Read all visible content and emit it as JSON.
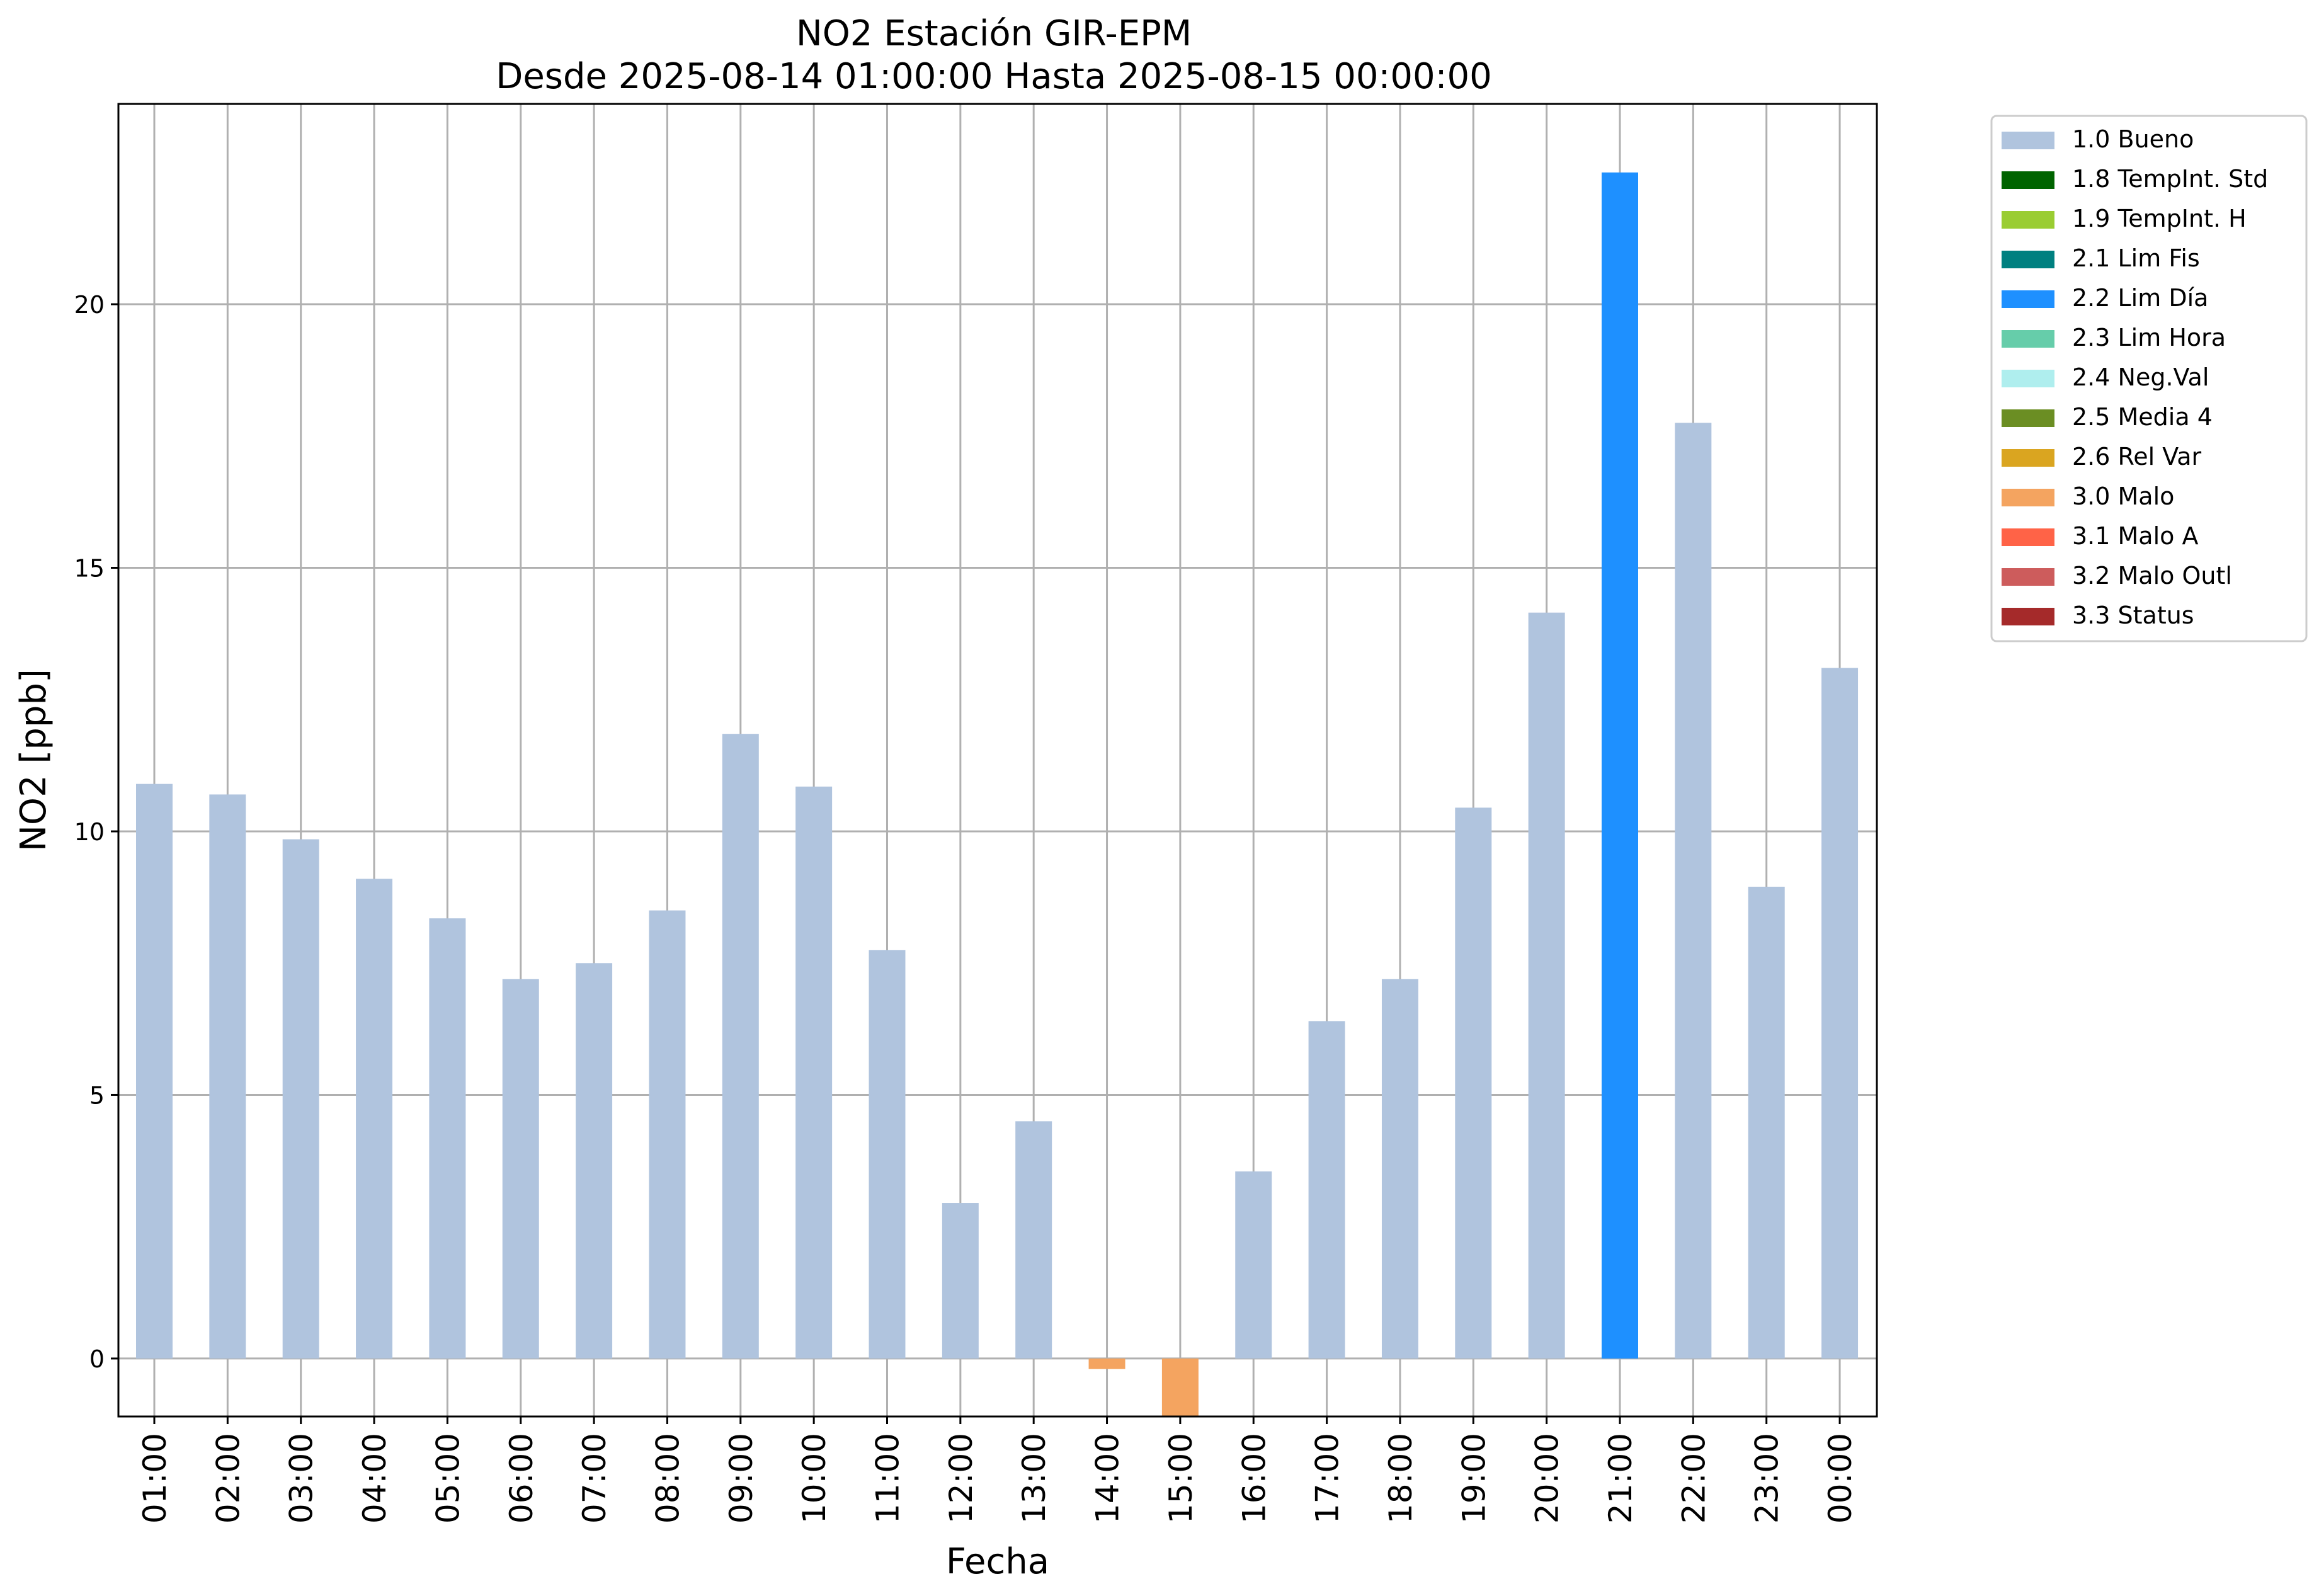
{
  "chart_data": {
    "type": "bar",
    "title": "NO2 Estación GIR-EPM",
    "subtitle": "Desde 2025-08-14 01:00:00 Hasta 2025-08-15 00:00:00",
    "xlabel": "Fecha",
    "ylabel": "NO2 [ppb]",
    "ylim": [
      -1.1,
      23.8
    ],
    "yticks": [
      0,
      5,
      10,
      15,
      20
    ],
    "grid": true,
    "legend_position": "outside-top-right",
    "categories": [
      "01:00",
      "02:00",
      "03:00",
      "04:00",
      "05:00",
      "06:00",
      "07:00",
      "08:00",
      "09:00",
      "10:00",
      "11:00",
      "12:00",
      "13:00",
      "14:00",
      "15:00",
      "16:00",
      "17:00",
      "18:00",
      "19:00",
      "20:00",
      "21:00",
      "22:00",
      "23:00",
      "00:00"
    ],
    "values": [
      10.9,
      10.7,
      9.85,
      9.1,
      8.35,
      7.2,
      7.5,
      8.5,
      11.85,
      10.85,
      7.75,
      2.95,
      4.5,
      -0.2,
      -1.1,
      3.55,
      6.4,
      7.2,
      10.45,
      14.15,
      22.5,
      17.75,
      8.95,
      13.1
    ],
    "flags": [
      "1.0 Bueno",
      "1.0 Bueno",
      "1.0 Bueno",
      "1.0 Bueno",
      "1.0 Bueno",
      "1.0 Bueno",
      "1.0 Bueno",
      "1.0 Bueno",
      "1.0 Bueno",
      "1.0 Bueno",
      "1.0 Bueno",
      "1.0 Bueno",
      "1.0 Bueno",
      "3.0 Malo",
      "3.0 Malo",
      "1.0 Bueno",
      "1.0 Bueno",
      "1.0 Bueno",
      "1.0 Bueno",
      "1.0 Bueno",
      "2.2 Lim Día",
      "1.0 Bueno",
      "1.0 Bueno",
      "1.0 Bueno"
    ],
    "legend": [
      {
        "label": "1.0 Bueno",
        "color": "#b0c4de"
      },
      {
        "label": "1.8 TempInt. Std",
        "color": "#006400"
      },
      {
        "label": "1.9 TempInt. H",
        "color": "#9acd32"
      },
      {
        "label": "2.1 Lim Fis",
        "color": "#008080"
      },
      {
        "label": "2.2 Lim Día",
        "color": "#1e90ff"
      },
      {
        "label": "2.3 Lim Hora",
        "color": "#66cdaa"
      },
      {
        "label": "2.4 Neg.Val",
        "color": "#afeeee"
      },
      {
        "label": "2.5 Media 4",
        "color": "#6b8e23"
      },
      {
        "label": "2.6 Rel Var",
        "color": "#daa520"
      },
      {
        "label": "3.0 Malo",
        "color": "#f4a460"
      },
      {
        "label": "3.1 Malo A",
        "color": "#ff6347"
      },
      {
        "label": "3.2 Malo Outl",
        "color": "#cd5c5c"
      },
      {
        "label": "3.3 Status",
        "color": "#a52a2a"
      }
    ]
  }
}
